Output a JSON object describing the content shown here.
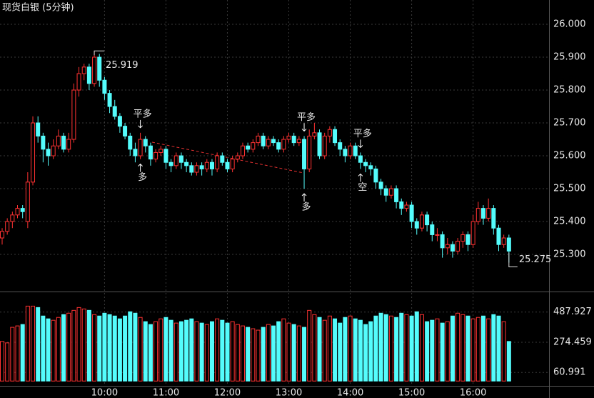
{
  "chart_data": {
    "type": "candlestick",
    "title": "现货白银 (5分钟)",
    "ylim": [
      25.187,
      26.074
    ],
    "yticks": [
      {
        "value": 25.3,
        "label": "25.300"
      },
      {
        "value": 25.4,
        "label": "25.400"
      },
      {
        "value": 25.5,
        "label": "25.500"
      },
      {
        "value": 25.6,
        "label": "25.600"
      },
      {
        "value": 25.7,
        "label": "25.700"
      },
      {
        "value": 25.8,
        "label": "25.800"
      },
      {
        "value": 25.9,
        "label": "25.900"
      },
      {
        "value": 26,
        "label": "26.000"
      }
    ],
    "up_color": "#ff3232",
    "down_color": "#54fcfc",
    "grid": true,
    "categories": [
      null,
      null,
      null,
      null,
      null,
      null,
      null,
      null,
      null,
      null,
      null,
      null,
      null,
      null,
      null,
      null,
      null,
      null,
      null,
      null,
      "10:00",
      null,
      null,
      null,
      null,
      null,
      null,
      null,
      null,
      null,
      null,
      null,
      "11:00",
      null,
      null,
      null,
      null,
      null,
      null,
      null,
      null,
      null,
      null,
      null,
      "12:00",
      null,
      null,
      null,
      null,
      null,
      null,
      null,
      null,
      null,
      null,
      null,
      "13:00",
      null,
      null,
      null,
      null,
      null,
      null,
      null,
      null,
      null,
      null,
      null,
      "14:00",
      null,
      null,
      null,
      null,
      null,
      null,
      null,
      null,
      null,
      null,
      null,
      "15:00",
      null,
      null,
      null,
      null,
      null,
      null,
      null,
      null,
      null,
      null,
      null,
      "16:00",
      null,
      null,
      null,
      null,
      null,
      null,
      null
    ],
    "candles": [
      [
        25.35,
        25.38,
        25.33,
        25.37
      ],
      [
        25.37,
        25.41,
        25.36,
        25.4
      ],
      [
        25.4,
        25.43,
        25.38,
        25.42
      ],
      [
        25.42,
        25.45,
        25.41,
        25.44
      ],
      [
        25.44,
        25.45,
        25.41,
        25.43
      ],
      [
        25.4,
        25.55,
        25.38,
        25.52
      ],
      [
        25.52,
        25.72,
        25.51,
        25.7
      ],
      [
        25.7,
        25.72,
        25.64,
        25.66
      ],
      [
        25.66,
        25.67,
        25.58,
        25.62
      ],
      [
        25.62,
        25.64,
        25.57,
        25.6
      ],
      [
        25.6,
        25.65,
        25.59,
        25.63
      ],
      [
        25.63,
        25.68,
        25.62,
        25.66
      ],
      [
        25.66,
        25.67,
        25.61,
        25.62
      ],
      [
        25.62,
        25.67,
        25.61,
        25.65
      ],
      [
        25.65,
        25.82,
        25.64,
        25.8
      ],
      [
        25.8,
        25.87,
        25.78,
        25.85
      ],
      [
        25.85,
        25.88,
        25.83,
        25.87
      ],
      [
        25.87,
        25.88,
        25.8,
        25.82
      ],
      [
        25.82,
        25.919,
        25.81,
        25.9
      ],
      [
        25.9,
        25.91,
        25.81,
        25.83
      ],
      [
        25.83,
        25.84,
        25.77,
        25.79
      ],
      [
        25.79,
        25.8,
        25.73,
        25.75
      ],
      [
        25.75,
        25.77,
        25.71,
        25.72
      ],
      [
        25.72,
        25.73,
        25.67,
        25.69
      ],
      [
        25.69,
        25.7,
        25.65,
        25.66
      ],
      [
        25.66,
        25.67,
        25.6,
        25.62
      ],
      [
        25.62,
        25.64,
        25.58,
        25.6
      ],
      [
        25.6,
        25.67,
        25.59,
        25.65
      ],
      [
        25.65,
        25.66,
        25.61,
        25.63
      ],
      [
        25.63,
        25.64,
        25.57,
        25.59
      ],
      [
        25.59,
        25.62,
        25.58,
        25.61
      ],
      [
        25.61,
        25.63,
        25.6,
        25.62
      ],
      [
        25.62,
        25.63,
        25.56,
        25.58
      ],
      [
        25.58,
        25.59,
        25.55,
        25.57
      ],
      [
        25.57,
        25.61,
        25.56,
        25.6
      ],
      [
        25.6,
        25.61,
        25.56,
        25.58
      ],
      [
        25.58,
        25.59,
        25.55,
        25.57
      ],
      [
        25.57,
        25.58,
        25.54,
        25.55
      ],
      [
        25.55,
        25.58,
        25.54,
        25.57
      ],
      [
        25.57,
        25.58,
        25.54,
        25.56
      ],
      [
        25.56,
        25.59,
        25.55,
        25.58
      ],
      [
        25.58,
        25.59,
        25.54,
        25.56
      ],
      [
        25.56,
        25.61,
        25.55,
        25.6
      ],
      [
        25.6,
        25.61,
        25.57,
        25.58
      ],
      [
        25.58,
        25.59,
        25.55,
        25.56
      ],
      [
        25.56,
        25.6,
        25.55,
        25.59
      ],
      [
        25.59,
        25.61,
        25.58,
        25.6
      ],
      [
        25.6,
        25.64,
        25.59,
        25.63
      ],
      [
        25.63,
        25.64,
        25.61,
        25.62
      ],
      [
        25.62,
        25.65,
        25.61,
        25.64
      ],
      [
        25.64,
        25.67,
        25.63,
        25.66
      ],
      [
        25.66,
        25.67,
        25.62,
        25.63
      ],
      [
        25.63,
        25.66,
        25.62,
        25.65
      ],
      [
        25.65,
        25.66,
        25.63,
        25.64
      ],
      [
        25.64,
        25.65,
        25.61,
        25.62
      ],
      [
        25.62,
        25.66,
        25.61,
        25.65
      ],
      [
        25.65,
        25.67,
        25.64,
        25.66
      ],
      [
        25.66,
        25.67,
        25.63,
        25.64
      ],
      [
        25.64,
        25.66,
        25.63,
        25.65
      ],
      [
        25.65,
        25.66,
        25.5,
        25.56
      ],
      [
        25.56,
        25.68,
        25.55,
        25.66
      ],
      [
        25.66,
        25.7,
        25.65,
        25.67
      ],
      [
        25.67,
        25.68,
        25.59,
        25.6
      ],
      [
        25.6,
        25.67,
        25.59,
        25.66
      ],
      [
        25.66,
        25.69,
        25.64,
        25.68
      ],
      [
        25.68,
        25.69,
        25.63,
        25.64
      ],
      [
        25.64,
        25.65,
        25.6,
        25.62
      ],
      [
        25.62,
        25.63,
        25.58,
        25.6
      ],
      [
        25.6,
        25.64,
        25.59,
        25.63
      ],
      [
        25.63,
        25.64,
        25.59,
        25.6
      ],
      [
        25.6,
        25.61,
        25.56,
        25.58
      ],
      [
        25.58,
        25.59,
        25.55,
        25.57
      ],
      [
        25.57,
        25.58,
        25.54,
        25.56
      ],
      [
        25.56,
        25.57,
        25.5,
        25.52
      ],
      [
        25.52,
        25.53,
        25.48,
        25.5
      ],
      [
        25.5,
        25.51,
        25.46,
        25.48
      ],
      [
        25.48,
        25.51,
        25.47,
        25.5
      ],
      [
        25.5,
        25.51,
        25.44,
        25.46
      ],
      [
        25.46,
        25.47,
        25.42,
        25.44
      ],
      [
        25.44,
        25.46,
        25.43,
        25.45
      ],
      [
        25.45,
        25.46,
        25.38,
        25.4
      ],
      [
        25.4,
        25.41,
        25.36,
        25.38
      ],
      [
        25.38,
        25.43,
        25.37,
        25.42
      ],
      [
        25.42,
        25.43,
        25.37,
        25.39
      ],
      [
        25.39,
        25.4,
        25.34,
        25.36
      ],
      [
        25.36,
        25.38,
        25.34,
        25.36
      ],
      [
        25.36,
        25.37,
        25.29,
        25.32
      ],
      [
        25.32,
        25.35,
        25.3,
        25.33
      ],
      [
        25.33,
        25.34,
        25.29,
        25.31
      ],
      [
        25.31,
        25.35,
        25.3,
        25.34
      ],
      [
        25.34,
        25.37,
        25.32,
        25.36
      ],
      [
        25.36,
        25.37,
        25.31,
        25.33
      ],
      [
        25.33,
        25.42,
        25.32,
        25.4
      ],
      [
        25.4,
        25.46,
        25.39,
        25.44
      ],
      [
        25.44,
        25.45,
        25.39,
        25.41
      ],
      [
        25.41,
        25.47,
        25.4,
        25.44
      ],
      [
        25.44,
        25.45,
        25.36,
        25.38
      ],
      [
        25.38,
        25.39,
        25.31,
        25.33
      ],
      [
        25.33,
        25.36,
        25.32,
        25.35
      ],
      [
        25.35,
        25.36,
        25.275,
        25.31
      ]
    ],
    "high_label": 25.919,
    "low_label": 25.275,
    "annotations": [
      {
        "text": "平多",
        "color": "#3cdc3c"
      },
      {
        "text": "多",
        "color": "#ff3232"
      },
      {
        "text": "平多",
        "color": "#3cdc3c"
      },
      {
        "text": "多",
        "color": "#ff3232"
      },
      {
        "text": "平多",
        "color": "#3cdc3c"
      },
      {
        "text": "空",
        "color": "#3cdc3c"
      }
    ],
    "volumes": [
      280,
      270,
      380,
      390,
      400,
      530,
      530,
      520,
      460,
      440,
      430,
      450,
      470,
      480,
      500,
      520,
      510,
      500,
      470,
      460,
      480,
      470,
      460,
      440,
      460,
      490,
      480,
      450,
      420,
      400,
      420,
      440,
      450,
      430,
      410,
      420,
      430,
      440,
      420,
      410,
      400,
      420,
      440,
      430,
      410,
      420,
      400,
      390,
      380,
      370,
      360,
      380,
      400,
      390,
      420,
      440,
      410,
      400,
      390,
      380,
      500,
      470,
      450,
      430,
      460,
      440,
      410,
      450,
      460,
      440,
      430,
      400,
      420,
      460,
      480,
      470,
      460,
      450,
      480,
      470,
      460,
      490,
      470,
      420,
      430,
      440,
      410,
      420,
      460,
      480,
      470,
      460,
      440,
      450,
      460,
      440,
      470,
      460,
      420,
      280
    ],
    "vlim": [
      -34,
      623
    ],
    "vticks": [
      60.991,
      274.459,
      487.927
    ]
  }
}
